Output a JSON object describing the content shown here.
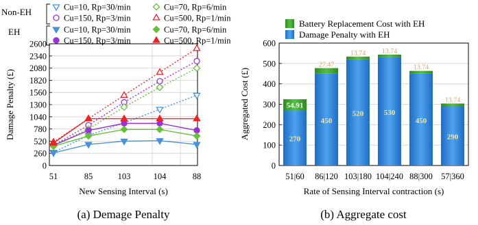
{
  "chart_data": [
    {
      "type": "line",
      "caption": "(a) Demage Penalty",
      "xlabel": "New Sensing Interval (s)",
      "ylabel": "Damage Penalty (£)",
      "categories": [
        "51",
        "85",
        "103",
        "104",
        "88"
      ],
      "yticks": [
        0,
        260,
        520,
        780,
        1040,
        1300,
        1560,
        1820,
        2080,
        2340,
        2600
      ],
      "ylim": [
        0,
        2600
      ],
      "legend_group_labels": [
        "Non-EH",
        "EH"
      ],
      "series": [
        {
          "name": "Cu=10, Rp=30/min",
          "group": "Non-EH",
          "color": "#4a90d9",
          "marker": "triangle-down-open",
          "line": "dotted",
          "values": [
            280,
            640,
            910,
            1200,
            1500
          ]
        },
        {
          "name": "Cu=150, Rp=3/min",
          "group": "Non-EH",
          "color": "#9b30d6",
          "marker": "circle-open",
          "line": "dotted",
          "values": [
            430,
            860,
            1350,
            1800,
            2230
          ]
        },
        {
          "name": "Cu=70, Rp=6/min",
          "group": "Non-EH",
          "color": "#66c03a",
          "marker": "diamond-open",
          "line": "dotted",
          "values": [
            430,
            780,
            1250,
            1670,
            2080
          ]
        },
        {
          "name": "Cu=500, Rp=1/min",
          "group": "Non-EH",
          "color": "#ee2424",
          "marker": "triangle-up-open",
          "line": "dotted",
          "values": [
            500,
            1000,
            1500,
            1990,
            2500
          ]
        },
        {
          "name": "Cu=10, Rp=30/min",
          "group": "EH",
          "color": "#4a90d9",
          "marker": "triangle-down",
          "line": "solid",
          "values": [
            270,
            450,
            520,
            530,
            450
          ]
        },
        {
          "name": "Cu=150, Rp=3/min",
          "group": "EH",
          "color": "#9b30d6",
          "marker": "circle",
          "line": "solid",
          "values": [
            430,
            750,
            900,
            900,
            750
          ]
        },
        {
          "name": "Cu=70, Rp=6/min",
          "group": "EH",
          "color": "#66c03a",
          "marker": "diamond",
          "line": "solid",
          "values": [
            410,
            630,
            770,
            770,
            630
          ]
        },
        {
          "name": "Cu=500, Rp=1/min",
          "group": "EH",
          "color": "#ee2424",
          "marker": "triangle-up",
          "line": "solid",
          "values": [
            480,
            1000,
            1000,
            1000,
            1000
          ]
        }
      ]
    },
    {
      "type": "bar",
      "stacked": true,
      "caption": "(b) Aggregate cost",
      "xlabel": "Rate of Sensing Interval contraction (s)",
      "ylabel": "Aggregated Cost (£)",
      "categories": [
        "51|60",
        "86|120",
        "103|180",
        "104|240",
        "88|300",
        "57|360"
      ],
      "yticks": [
        0,
        100,
        200,
        300,
        400,
        500,
        600
      ],
      "ylim": [
        0,
        600
      ],
      "series": [
        {
          "name": "Damage Penalty with EH",
          "color": "#2b7fd6",
          "values": [
            270,
            450,
            520,
            530,
            450,
            290
          ],
          "labels": [
            "270",
            "450",
            "520",
            "530",
            "450",
            "290"
          ]
        },
        {
          "name": "Battery Replacement Cost with EH",
          "color": "#3aa32c",
          "values": [
            54.91,
            27.47,
            13.74,
            13.74,
            13.74,
            13.74
          ],
          "labels": [
            "54.91",
            "27.47",
            "13.74",
            "13.74",
            "13.74",
            "13.74"
          ]
        }
      ]
    }
  ]
}
